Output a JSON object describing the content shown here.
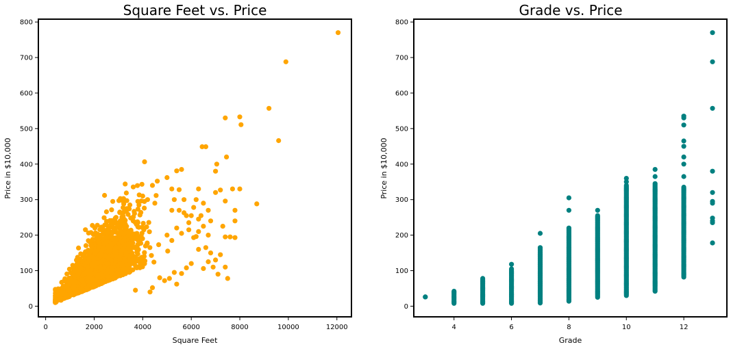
{
  "chart_data": [
    {
      "type": "scatter",
      "title": "Square Feet vs. Price",
      "xlabel": "Square Feet",
      "ylabel": "Price in $10,000",
      "xlim": [
        -300,
        12600
      ],
      "ylim": [
        -30,
        808
      ],
      "xticks": [
        0,
        2000,
        4000,
        6000,
        8000,
        10000,
        12000
      ],
      "yticks": [
        0,
        100,
        200,
        300,
        400,
        500,
        600,
        700,
        800
      ],
      "color": "#FFA500",
      "points": [
        [
          12050,
          770
        ],
        [
          9900,
          688
        ],
        [
          9200,
          557
        ],
        [
          7400,
          530
        ],
        [
          8000,
          533
        ],
        [
          8050,
          511
        ],
        [
          9600,
          466
        ],
        [
          6450,
          449
        ],
        [
          6600,
          449
        ],
        [
          7450,
          420
        ],
        [
          7050,
          400
        ],
        [
          7000,
          380
        ],
        [
          5600,
          385
        ],
        [
          5400,
          381
        ],
        [
          7200,
          327
        ],
        [
          7000,
          320
        ],
        [
          7700,
          330
        ],
        [
          8000,
          330
        ],
        [
          7400,
          296
        ],
        [
          8700,
          288
        ],
        [
          6500,
          290
        ],
        [
          6700,
          270
        ],
        [
          7800,
          270
        ],
        [
          7300,
          225
        ],
        [
          7800,
          240
        ],
        [
          7600,
          195
        ],
        [
          7400,
          195
        ],
        [
          7800,
          193
        ],
        [
          6300,
          245
        ],
        [
          6000,
          255
        ],
        [
          5900,
          235
        ],
        [
          6700,
          200
        ],
        [
          6200,
          196
        ],
        [
          6100,
          193
        ],
        [
          6600,
          165
        ],
        [
          6300,
          160
        ],
        [
          6800,
          150
        ],
        [
          7200,
          145
        ],
        [
          7000,
          130
        ],
        [
          6700,
          125
        ],
        [
          6900,
          110
        ],
        [
          7400,
          110
        ],
        [
          6500,
          106
        ],
        [
          7100,
          90
        ],
        [
          7500,
          78
        ],
        [
          5000,
          362
        ],
        [
          4600,
          352
        ],
        [
          4400,
          340
        ],
        [
          5200,
          330
        ],
        [
          5500,
          328
        ],
        [
          5700,
          300
        ],
        [
          5300,
          300
        ],
        [
          4500,
          290
        ],
        [
          4200,
          300
        ],
        [
          4000,
          310
        ],
        [
          3800,
          295
        ],
        [
          5500,
          270
        ],
        [
          5700,
          263
        ],
        [
          5200,
          270
        ],
        [
          6200,
          300
        ],
        [
          6300,
          330
        ],
        [
          5800,
          255
        ],
        [
          6400,
          255
        ],
        [
          6100,
          278
        ],
        [
          5900,
          215
        ],
        [
          6300,
          210
        ],
        [
          5400,
          220
        ],
        [
          5600,
          205
        ],
        [
          6500,
          225
        ],
        [
          6800,
          240
        ],
        [
          5000,
          200
        ],
        [
          5200,
          185
        ],
        [
          4700,
          80
        ],
        [
          4400,
          52
        ],
        [
          3700,
          45
        ],
        [
          5100,
          78
        ],
        [
          5600,
          92
        ],
        [
          5800,
          108
        ],
        [
          6000,
          120
        ],
        [
          5400,
          62
        ],
        [
          4900,
          72
        ],
        [
          5300,
          95
        ],
        [
          4300,
          40
        ]
      ],
      "cluster": {
        "x_min": 400,
        "x_max": 4600,
        "center_x": 2200,
        "base_price_at_400": 10,
        "slope_per_1000_sqft": 28
      }
    },
    {
      "type": "scatter",
      "title": "Grade vs. Price",
      "xlabel": "Grade",
      "ylabel": "Price in $10,000",
      "xlim": [
        2.6,
        13.5
      ],
      "ylim": [
        -30,
        808
      ],
      "xticks": [
        4,
        6,
        8,
        10,
        12
      ],
      "yticks": [
        0,
        100,
        200,
        300,
        400,
        500,
        600,
        700,
        800
      ],
      "color": "#008080",
      "columns": [
        {
          "grade": 3,
          "min": 26,
          "max": 26,
          "outliers": []
        },
        {
          "grade": 4,
          "min": 8,
          "max": 42,
          "outliers": []
        },
        {
          "grade": 5,
          "min": 8,
          "max": 78,
          "outliers": []
        },
        {
          "grade": 6,
          "min": 8,
          "max": 105,
          "outliers": [
            118
          ]
        },
        {
          "grade": 7,
          "min": 9,
          "max": 165,
          "outliers": [
            205
          ]
        },
        {
          "grade": 8,
          "min": 14,
          "max": 220,
          "outliers": [
            270,
            305
          ]
        },
        {
          "grade": 9,
          "min": 25,
          "max": 255,
          "outliers": [
            270
          ]
        },
        {
          "grade": 10,
          "min": 30,
          "max": 340,
          "outliers": [
            350,
            360
          ]
        },
        {
          "grade": 11,
          "min": 42,
          "max": 345,
          "outliers": [
            365,
            385
          ]
        },
        {
          "grade": 12,
          "min": 82,
          "max": 335,
          "outliers": [
            365,
            400,
            420,
            450,
            465,
            510,
            530,
            535
          ]
        },
        {
          "grade": 13,
          "min": 178,
          "max": 178,
          "outliers": [
            235,
            240,
            248,
            290,
            295,
            320,
            380,
            557,
            688,
            770
          ]
        }
      ]
    }
  ]
}
